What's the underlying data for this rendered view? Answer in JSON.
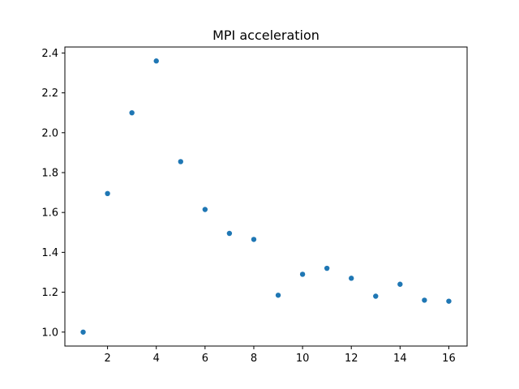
{
  "chart_data": {
    "type": "scatter",
    "title": "MPI acceleration",
    "xlabel": "",
    "ylabel": "",
    "x": [
      1,
      2,
      3,
      4,
      5,
      6,
      7,
      8,
      9,
      10,
      11,
      12,
      13,
      14,
      15,
      16
    ],
    "y": [
      1.0,
      1.695,
      2.1,
      2.36,
      1.855,
      1.615,
      1.495,
      1.465,
      1.185,
      1.29,
      1.32,
      1.27,
      1.18,
      1.24,
      1.16,
      1.155
    ],
    "xlim": [
      0.25,
      16.75
    ],
    "ylim": [
      0.93,
      2.43
    ],
    "x_ticks": [
      2,
      4,
      6,
      8,
      10,
      12,
      14,
      16
    ],
    "y_ticks": [
      1.0,
      1.2,
      1.4,
      1.6,
      1.8,
      2.0,
      2.2,
      2.4
    ],
    "x_tick_labels": [
      "2",
      "4",
      "6",
      "8",
      "10",
      "12",
      "14",
      "16"
    ],
    "y_tick_labels": [
      "1.0",
      "1.2",
      "1.4",
      "1.6",
      "1.8",
      "2.0",
      "2.2",
      "2.4"
    ],
    "grid": false,
    "marker_color": "#1f77b4"
  }
}
